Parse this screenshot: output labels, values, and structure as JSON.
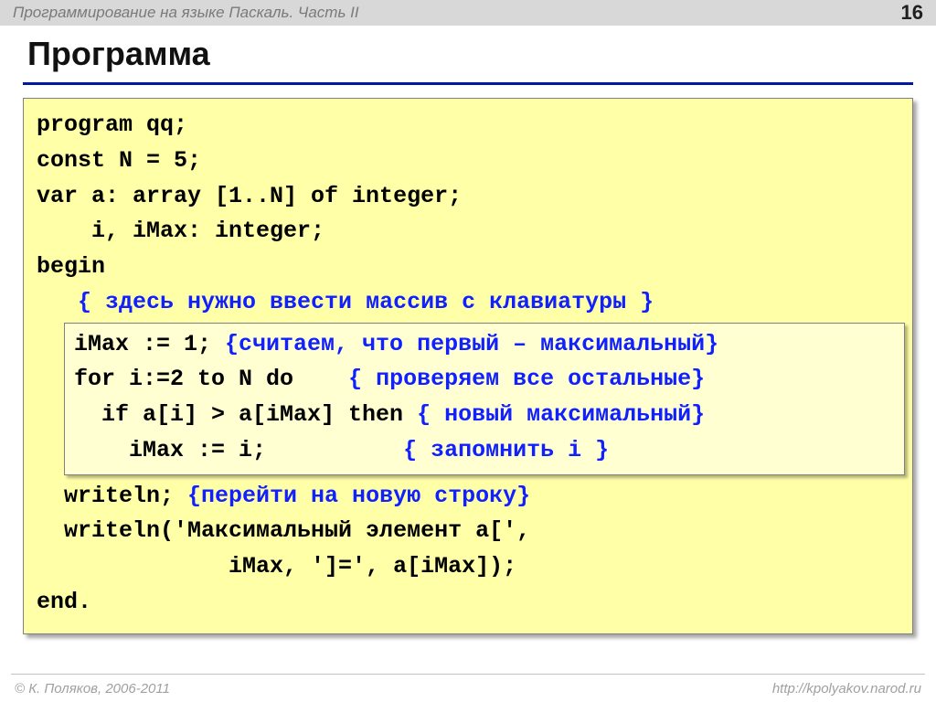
{
  "topbar": {
    "title": "Программирование на языке Паскаль. Часть II",
    "page": "16"
  },
  "heading": "Программа",
  "code": {
    "l1": "program qq;",
    "l2": "const N = 5;",
    "l3": "var a: array [1..N] of integer;",
    "l4": "    i, iMax: integer;",
    "l5": "begin",
    "l6_indent": "   ",
    "l6_comment": "{ здесь нужно ввести массив с клавиатуры }",
    "box": {
      "l1_code": "iMax := 1; ",
      "l1_comment": "{считаем, что первый – максимальный}",
      "l2_code": "for i:=2 to N do    ",
      "l2_comment": "{ проверяем все остальные}",
      "l3_code": "  if a[i] > a[iMax] then ",
      "l3_comment": "{ новый максимальный}",
      "l4_code": "    iMax := i;          ",
      "l4_comment": "{ запомнить i }"
    },
    "l7_code": "  writeln; ",
    "l7_comment": "{перейти на новую строку}",
    "l8": "  writeln('Максимальный элемент a[',",
    "l9": "              iMax, ']=', a[iMax]);",
    "l10": "end."
  },
  "footer": {
    "copyright": "© К. Поляков, 2006-2011",
    "url": "http://kpolyakov.narod.ru"
  },
  "colors": {
    "topbar_bg": "#d8d8d8",
    "heading_rule": "#0018a8",
    "codebox_bg": "#ffffa8",
    "comment": "#1020ff",
    "highlight_bg": "#ffffd2"
  }
}
